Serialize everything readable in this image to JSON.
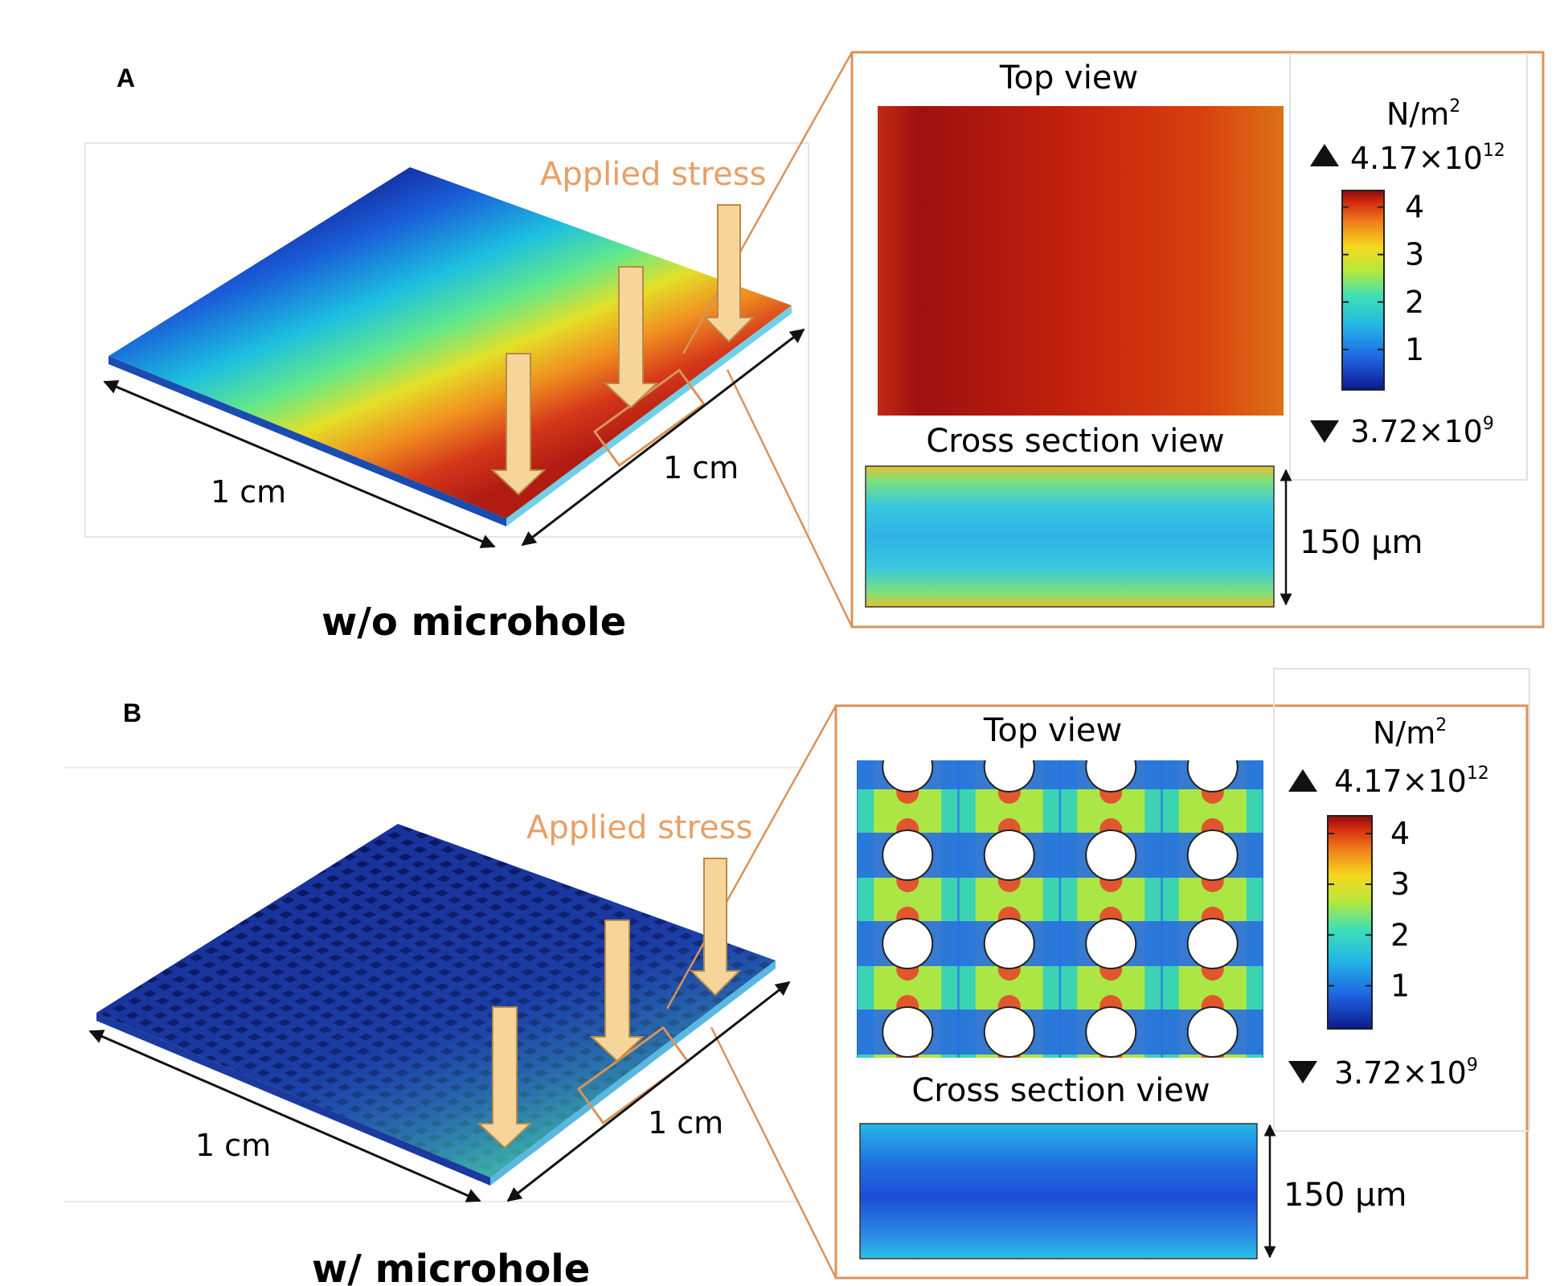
{
  "panels": [
    {
      "letter": "A",
      "caption": "w/o microhole",
      "applied_stress_label": "Applied stress",
      "length_left": "1 cm",
      "length_right": "1 cm",
      "top_view_title": "Top view",
      "cross_section_title": "Cross section view",
      "thickness_label": "150 μm",
      "colorbar": {
        "unit_base": "N/m",
        "unit_exp": "2",
        "max_mantissa": "4.17×10",
        "max_exp": "12",
        "min_mantissa": "3.72×10",
        "min_exp": "9",
        "ticks": [
          "4",
          "3",
          "2",
          "1"
        ]
      }
    },
    {
      "letter": "B",
      "caption": "w/ microhole",
      "applied_stress_label": "Applied stress",
      "length_left": "1 cm",
      "length_right": "1 cm",
      "top_view_title": "Top view",
      "cross_section_title": "Cross section view",
      "thickness_label": "150 μm",
      "colorbar": {
        "unit_base": "N/m",
        "unit_exp": "2",
        "max_mantissa": "4.17×10",
        "max_exp": "12",
        "min_mantissa": "3.72×10",
        "min_exp": "9",
        "ticks": [
          "4",
          "3",
          "2",
          "1"
        ]
      }
    }
  ],
  "colors": {
    "accent_orange": "#d9935a",
    "stress_label": "#e8a066",
    "arrow_fill": "#f6d59a",
    "arrow_stroke": "#b98a45"
  }
}
